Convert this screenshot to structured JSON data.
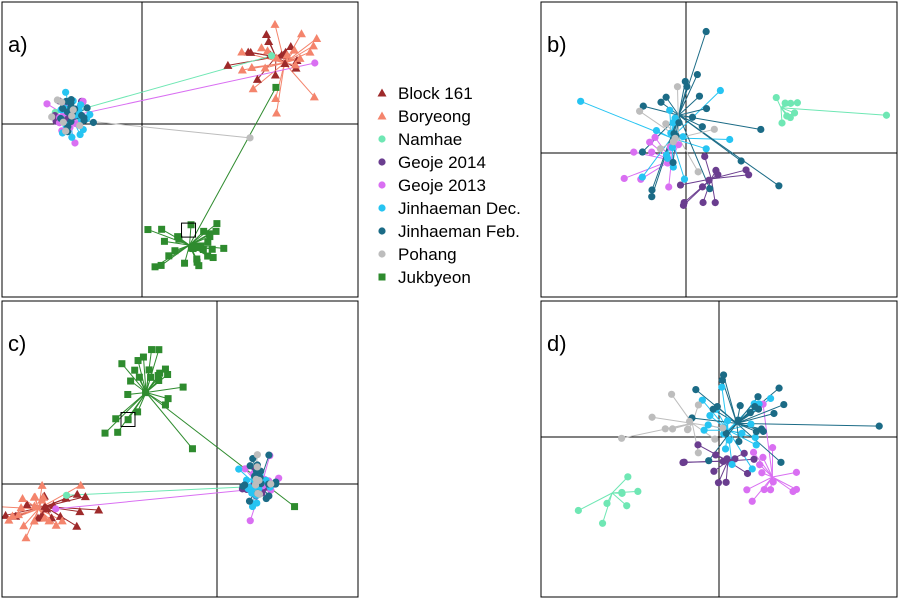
{
  "legend": [
    {
      "name": "Block 161",
      "color": "#9e2a2b",
      "shape": "triangle"
    },
    {
      "name": "Boryeong",
      "color": "#f4846c",
      "shape": "triangle"
    },
    {
      "name": "Namhae",
      "color": "#6fe7b4",
      "shape": "circle"
    },
    {
      "name": "Geoje 2014",
      "color": "#6a3d8f",
      "shape": "circle"
    },
    {
      "name": "Geoje 2013",
      "color": "#d96ff2",
      "shape": "circle"
    },
    {
      "name": "Jinhaeman Dec.",
      "color": "#26c4f2",
      "shape": "circle"
    },
    {
      "name": "Jinhaeman Feb.",
      "color": "#1b6b86",
      "shape": "circle"
    },
    {
      "name": "Pohang",
      "color": "#bdbdbd",
      "shape": "circle"
    },
    {
      "name": "Jukbyeon",
      "color": "#2e8b2e",
      "shape": "square"
    }
  ],
  "chart_data": [
    {
      "type": "scatter",
      "panel_label": "a)",
      "xlim": [
        -1,
        1
      ],
      "ylim": [
        -1,
        1
      ],
      "clusters": [
        {
          "group": "Block 161",
          "centroid": [
            0.62,
            0.55
          ],
          "spread": [
            0.18,
            0.22
          ],
          "n": 14
        },
        {
          "group": "Boryeong",
          "centroid": [
            0.66,
            0.5
          ],
          "spread": [
            0.2,
            0.26
          ],
          "n": 20
        },
        {
          "group": "Namhae",
          "centroid": [
            -0.5,
            0.1
          ],
          "spread": [
            0.1,
            0.12
          ],
          "n": 3
        },
        {
          "group": "Geoje 2014",
          "centroid": [
            -0.52,
            0.08
          ],
          "spread": [
            0.1,
            0.12
          ],
          "n": 10
        },
        {
          "group": "Geoje 2013",
          "centroid": [
            -0.53,
            0.06
          ],
          "spread": [
            0.12,
            0.14
          ],
          "n": 10
        },
        {
          "group": "Jinhaeman Dec.",
          "centroid": [
            -0.5,
            0.05
          ],
          "spread": [
            0.12,
            0.14
          ],
          "n": 18
        },
        {
          "group": "Jinhaeman Feb.",
          "centroid": [
            -0.5,
            0.06
          ],
          "spread": [
            0.12,
            0.14
          ],
          "n": 18
        },
        {
          "group": "Pohang",
          "centroid": [
            -0.52,
            0.04
          ],
          "spread": [
            0.12,
            0.12
          ],
          "n": 8
        },
        {
          "group": "Jukbyeon",
          "centroid": [
            0.22,
            -0.7
          ],
          "spread": [
            0.14,
            0.14
          ],
          "n": 30
        }
      ],
      "outliers": [
        {
          "group": "Namhae",
          "point": [
            0.6,
            0.56
          ]
        },
        {
          "group": "Geoje 2013",
          "point": [
            0.8,
            0.5
          ]
        },
        {
          "group": "Pohang",
          "point": [
            0.5,
            -0.08
          ]
        },
        {
          "group": "Jukbyeon",
          "point": [
            0.62,
            0.3
          ]
        }
      ]
    },
    {
      "type": "scatter",
      "panel_label": "b)",
      "xlim": [
        -1,
        1
      ],
      "ylim": [
        -1,
        1
      ],
      "clusters": [
        {
          "group": "Namhae",
          "centroid": [
            0.45,
            0.3
          ],
          "spread": [
            0.1,
            0.1
          ],
          "n": 8
        },
        {
          "group": "Geoje 2014",
          "centroid": [
            0.12,
            -0.18
          ],
          "spread": [
            0.25,
            0.25
          ],
          "n": 12
        },
        {
          "group": "Geoje 2013",
          "centroid": [
            -0.1,
            -0.05
          ],
          "spread": [
            0.25,
            0.25
          ],
          "n": 10
        },
        {
          "group": "Jinhaeman Dec.",
          "centroid": [
            -0.1,
            0.1
          ],
          "spread": [
            0.3,
            0.35
          ],
          "n": 16
        },
        {
          "group": "Jinhaeman Feb.",
          "centroid": [
            -0.05,
            0.25
          ],
          "spread": [
            0.3,
            0.4
          ],
          "n": 22
        },
        {
          "group": "Pohang",
          "centroid": [
            -0.05,
            0.1
          ],
          "spread": [
            0.25,
            0.25
          ],
          "n": 8
        }
      ],
      "outliers": [
        {
          "group": "Namhae",
          "point": [
            0.95,
            0.25
          ]
        }
      ]
    },
    {
      "type": "scatter",
      "panel_label": "c)",
      "xlim": [
        -1,
        1
      ],
      "ylim": [
        -1,
        1
      ],
      "clusters": [
        {
          "group": "Block 161",
          "centroid": [
            -0.8,
            -0.2
          ],
          "spread": [
            0.15,
            0.18
          ],
          "n": 18
        },
        {
          "group": "Boryeong",
          "centroid": [
            -0.83,
            -0.22
          ],
          "spread": [
            0.16,
            0.2
          ],
          "n": 20
        },
        {
          "group": "Namhae",
          "centroid": [
            0.3,
            -0.02
          ],
          "spread": [
            0.08,
            0.08
          ],
          "n": 3
        },
        {
          "group": "Geoje 2014",
          "centroid": [
            0.3,
            -0.02
          ],
          "spread": [
            0.1,
            0.1
          ],
          "n": 10
        },
        {
          "group": "Geoje 2013",
          "centroid": [
            0.31,
            -0.04
          ],
          "spread": [
            0.12,
            0.14
          ],
          "n": 10
        },
        {
          "group": "Jinhaeman Dec.",
          "centroid": [
            0.28,
            -0.01
          ],
          "spread": [
            0.12,
            0.12
          ],
          "n": 18
        },
        {
          "group": "Jinhaeman Feb.",
          "centroid": [
            0.3,
            0.0
          ],
          "spread": [
            0.12,
            0.12
          ],
          "n": 18
        },
        {
          "group": "Pohang",
          "centroid": [
            0.27,
            0.02
          ],
          "spread": [
            0.1,
            0.1
          ],
          "n": 8
        },
        {
          "group": "Jukbyeon",
          "centroid": [
            -0.33,
            0.5
          ],
          "spread": [
            0.16,
            0.2
          ],
          "n": 26
        }
      ],
      "outliers": [
        {
          "group": "Jukbyeon",
          "point": [
            0.55,
            -0.2
          ]
        },
        {
          "group": "Geoje 2013",
          "point": [
            -0.75,
            -0.22
          ]
        },
        {
          "group": "Namhae",
          "point": [
            -0.7,
            -0.1
          ]
        }
      ]
    },
    {
      "type": "scatter",
      "panel_label": "d)",
      "xlim": [
        -1,
        1
      ],
      "ylim": [
        -1,
        1
      ],
      "clusters": [
        {
          "group": "Namhae",
          "centroid": [
            -0.6,
            -0.35
          ],
          "spread": [
            0.2,
            0.3
          ],
          "n": 8
        },
        {
          "group": "Geoje 2014",
          "centroid": [
            0.05,
            -0.15
          ],
          "spread": [
            0.2,
            0.2
          ],
          "n": 14
        },
        {
          "group": "Geoje 2013",
          "centroid": [
            0.3,
            -0.25
          ],
          "spread": [
            0.2,
            0.25
          ],
          "n": 14
        },
        {
          "group": "Jinhaeman Dec.",
          "centroid": [
            0.05,
            0.05
          ],
          "spread": [
            0.25,
            0.25
          ],
          "n": 20
        },
        {
          "group": "Jinhaeman Feb.",
          "centroid": [
            0.1,
            0.1
          ],
          "spread": [
            0.28,
            0.28
          ],
          "n": 22
        },
        {
          "group": "Pohang",
          "centroid": [
            -0.15,
            0.1
          ],
          "spread": [
            0.25,
            0.2
          ],
          "n": 12
        }
      ],
      "outliers": [
        {
          "group": "Jinhaeman Feb.",
          "point": [
            0.9,
            0.08
          ]
        }
      ]
    }
  ]
}
